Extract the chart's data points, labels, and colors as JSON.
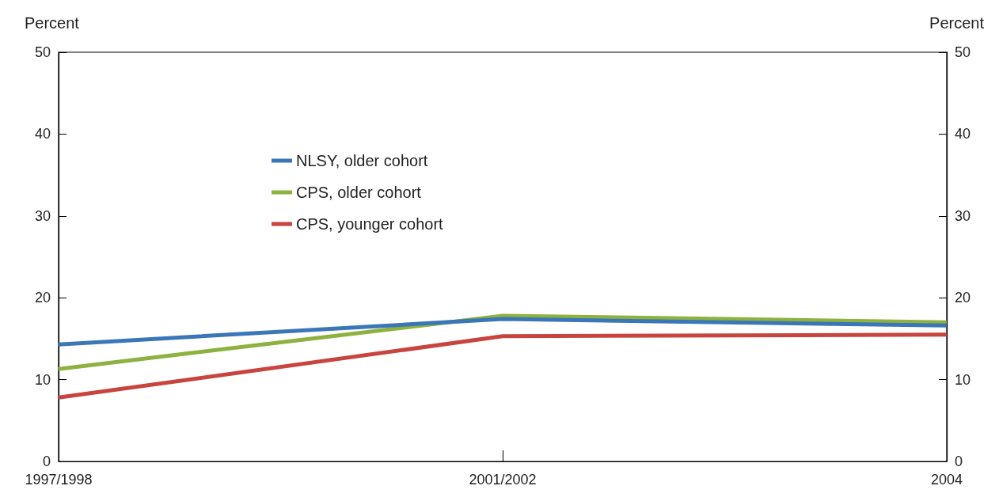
{
  "chart_data": {
    "type": "line",
    "ylabel": "Percent",
    "y2label": "Percent",
    "categories": [
      "1997/1998",
      "2001/2002",
      "2004"
    ],
    "series": [
      {
        "name": "NLSY, older cohort",
        "color": "#3a76b8",
        "values": [
          14.3,
          17.4,
          16.6
        ]
      },
      {
        "name": "CPS, older cohort",
        "color": "#8db23f",
        "values": [
          11.3,
          17.8,
          17.0
        ]
      },
      {
        "name": "CPS, younger cohort",
        "color": "#c8453f",
        "values": [
          7.8,
          15.3,
          15.5
        ]
      }
    ],
    "ylim": [
      0,
      50
    ],
    "yticks": [
      0,
      10,
      20,
      30,
      40,
      50
    ],
    "y2lim": [
      0,
      50
    ],
    "y2ticks": [
      0,
      10,
      20,
      30,
      40,
      50
    ],
    "grid": false,
    "legend": "top left",
    "marker": "none",
    "line_style": "solid"
  }
}
